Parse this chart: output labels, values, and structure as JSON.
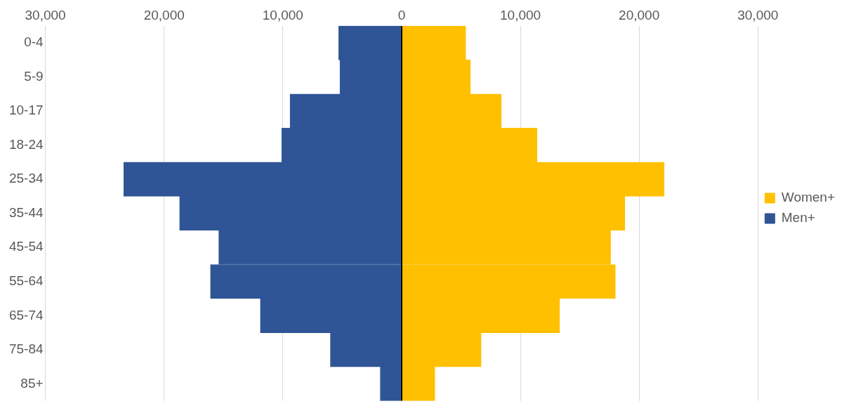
{
  "chart_data": {
    "type": "bar",
    "orientation": "horizontal",
    "stacked": true,
    "categories": [
      "0-4",
      "5-9",
      "10-17",
      "18-24",
      "25-34",
      "35-44",
      "45-54",
      "55-64",
      "65-74",
      "75-84",
      "85+"
    ],
    "series": [
      {
        "name": "Women+",
        "color": "#ffc000",
        "values": [
          5400,
          5800,
          8400,
          11400,
          22100,
          18800,
          17600,
          18000,
          13300,
          6700,
          2800
        ]
      },
      {
        "name": "Men+",
        "color": "#2f5597",
        "values": [
          -5300,
          -5200,
          -9400,
          -10100,
          -23400,
          -18700,
          -15400,
          -16100,
          -11900,
          -6000,
          -1800
        ]
      }
    ],
    "xlim": [
      -30000,
      30000
    ],
    "xticks": [
      {
        "value": -30000,
        "label": "30,000"
      },
      {
        "value": -20000,
        "label": "20,000"
      },
      {
        "value": -10000,
        "label": "10,000"
      },
      0,
      {
        "value": 10000,
        "label": "10,000"
      },
      {
        "value": 20000,
        "label": "20,000"
      },
      {
        "value": 30000,
        "label": "30,000"
      }
    ],
    "grid": "x",
    "legend": "right"
  }
}
